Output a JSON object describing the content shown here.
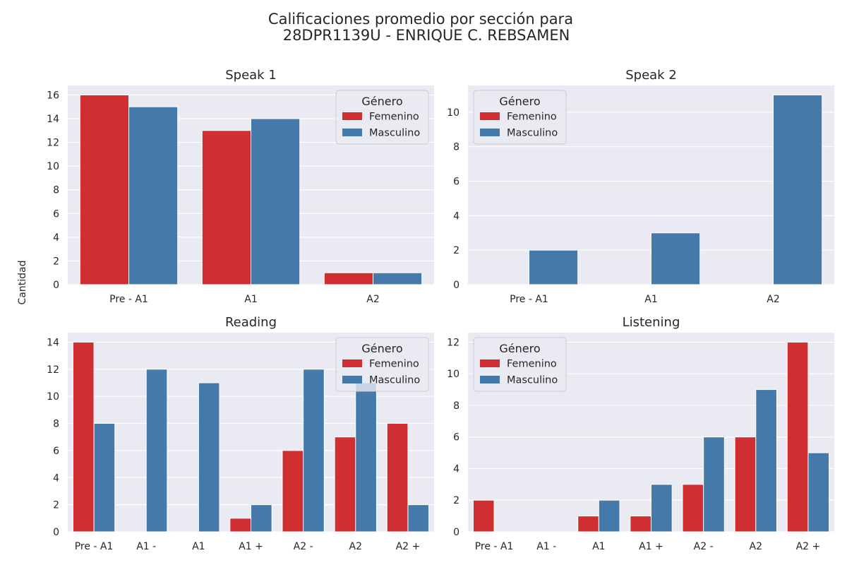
{
  "figure_title_line1": "Calificaciones promedio por sección para",
  "figure_title_line2": "28DPR1139U - ENRIQUE C. REBSAMEN",
  "ylabel": "Cantidad",
  "colors": {
    "Femenino": "#d12e32",
    "Masculino": "#4579a9",
    "plot_bg": "#eaeaf2",
    "grid": "#ffffff"
  },
  "chart_data": [
    {
      "type": "bar",
      "title": "Speak 1",
      "categories": [
        "Pre - A1",
        "A1",
        "A2"
      ],
      "series": [
        {
          "name": "Femenino",
          "values": [
            16,
            13,
            1
          ]
        },
        {
          "name": "Masculino",
          "values": [
            15,
            14,
            1
          ]
        }
      ],
      "ylim": [
        0,
        16.8
      ],
      "yticks": [
        0,
        2,
        4,
        6,
        8,
        10,
        12,
        14,
        16
      ],
      "legend": {
        "title": "Género",
        "placement": "upper right"
      },
      "grid": true
    },
    {
      "type": "bar",
      "title": "Speak 2",
      "categories": [
        "Pre - A1",
        "A1",
        "A2"
      ],
      "series": [
        {
          "name": "Femenino",
          "values": [
            0,
            0,
            0
          ]
        },
        {
          "name": "Masculino",
          "values": [
            2,
            3,
            11
          ]
        }
      ],
      "ylim": [
        0,
        11.55
      ],
      "yticks": [
        0,
        2,
        4,
        6,
        8,
        10
      ],
      "legend": {
        "title": "Género",
        "placement": "upper left"
      },
      "grid": true
    },
    {
      "type": "bar",
      "title": "Reading",
      "categories": [
        "Pre - A1",
        "A1 -",
        "A1",
        "A1 +",
        "A2 -",
        "A2",
        "A2 +"
      ],
      "series": [
        {
          "name": "Femenino",
          "values": [
            14,
            0,
            0,
            1,
            6,
            7,
            8
          ]
        },
        {
          "name": "Masculino",
          "values": [
            8,
            12,
            11,
            2,
            12,
            11,
            2
          ]
        }
      ],
      "ylim": [
        0,
        14.7
      ],
      "yticks": [
        0,
        2,
        4,
        6,
        8,
        10,
        12,
        14
      ],
      "legend": {
        "title": "Género",
        "placement": "upper right"
      },
      "grid": true
    },
    {
      "type": "bar",
      "title": "Listening",
      "categories": [
        "Pre - A1",
        "A1 -",
        "A1",
        "A1 +",
        "A2 -",
        "A2",
        "A2 +"
      ],
      "series": [
        {
          "name": "Femenino",
          "values": [
            2,
            0,
            1,
            1,
            3,
            6,
            12
          ]
        },
        {
          "name": "Masculino",
          "values": [
            0,
            0,
            2,
            3,
            6,
            9,
            5
          ]
        }
      ],
      "ylim": [
        0,
        12.6
      ],
      "yticks": [
        0,
        2,
        4,
        6,
        8,
        10,
        12
      ],
      "legend": {
        "title": "Género",
        "placement": "upper left"
      },
      "grid": true
    }
  ]
}
